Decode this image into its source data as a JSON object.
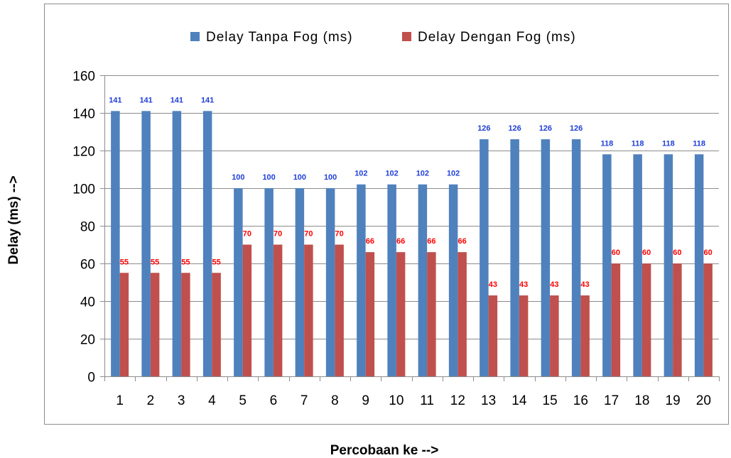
{
  "chart_data": {
    "type": "bar",
    "xlabel": "Percobaan ke -->",
    "ylabel": "Delay (ms) -->",
    "ylim": [
      0,
      160
    ],
    "yticks": [
      0,
      20,
      40,
      60,
      80,
      100,
      120,
      140,
      160
    ],
    "grid": true,
    "legend_position": "top-center",
    "categories": [
      "1",
      "2",
      "3",
      "4",
      "5",
      "6",
      "7",
      "8",
      "9",
      "10",
      "11",
      "12",
      "13",
      "14",
      "15",
      "16",
      "17",
      "18",
      "19",
      "20"
    ],
    "series": [
      {
        "name": "Delay Tanpa Fog (ms)",
        "color": "#4f81bd",
        "label_color": "#1f3fd8",
        "values": [
          141,
          141,
          141,
          141,
          100,
          100,
          100,
          100,
          102,
          102,
          102,
          102,
          126,
          126,
          126,
          126,
          118,
          118,
          118,
          118
        ]
      },
      {
        "name": "Delay Dengan Fog (ms)",
        "color": "#c0504d",
        "label_color": "#ff0000",
        "values": [
          55,
          55,
          55,
          55,
          70,
          70,
          70,
          70,
          66,
          66,
          66,
          66,
          43,
          43,
          43,
          43,
          60,
          60,
          60,
          60
        ]
      }
    ]
  }
}
